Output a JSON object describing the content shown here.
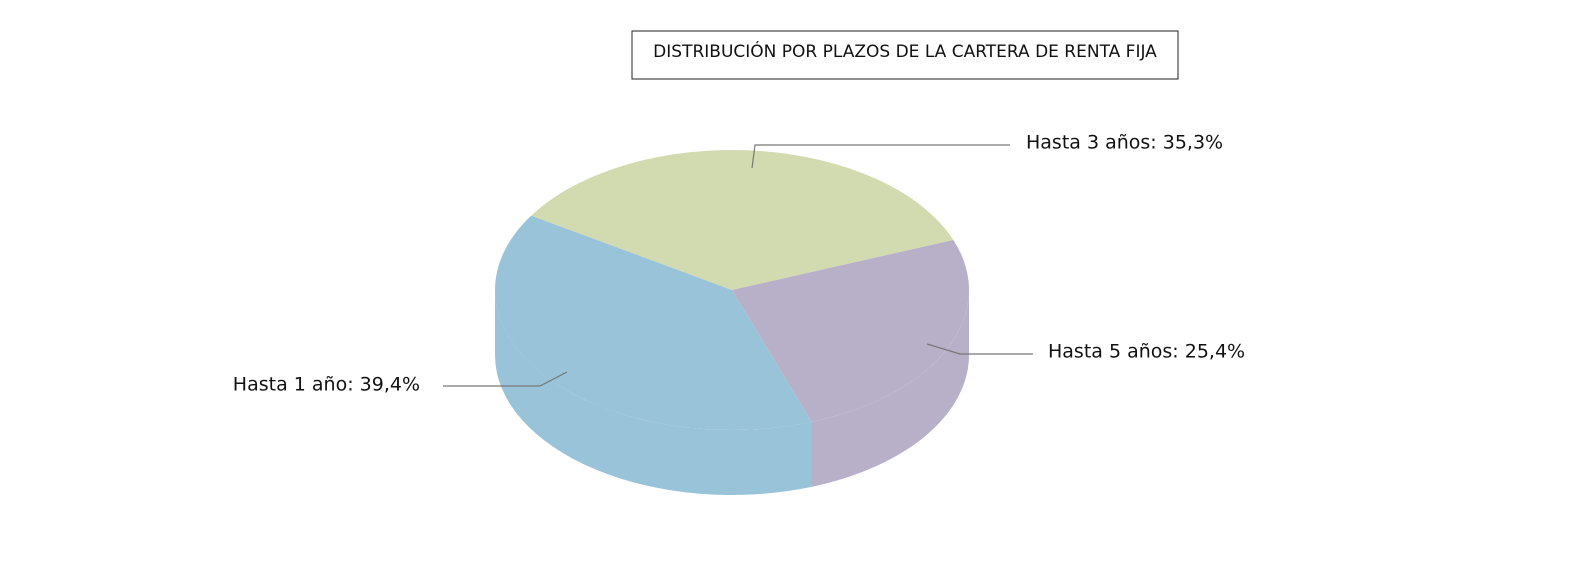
{
  "chart_data": {
    "type": "pie3d",
    "title": "DISTRIBUCIÓN POR PLAZOS DE LA CARTERA DE RENTA FIJA",
    "values": [
      39.4,
      35.3,
      25.4
    ],
    "value_labels": [
      "Hasta 1 año: 39,4%",
      "Hasta 3 años: 35,3%",
      "Hasta 5 años: 25,4%"
    ],
    "colors": [
      "#98c3d8",
      "#d2dab0",
      "#b8b0c8"
    ]
  }
}
